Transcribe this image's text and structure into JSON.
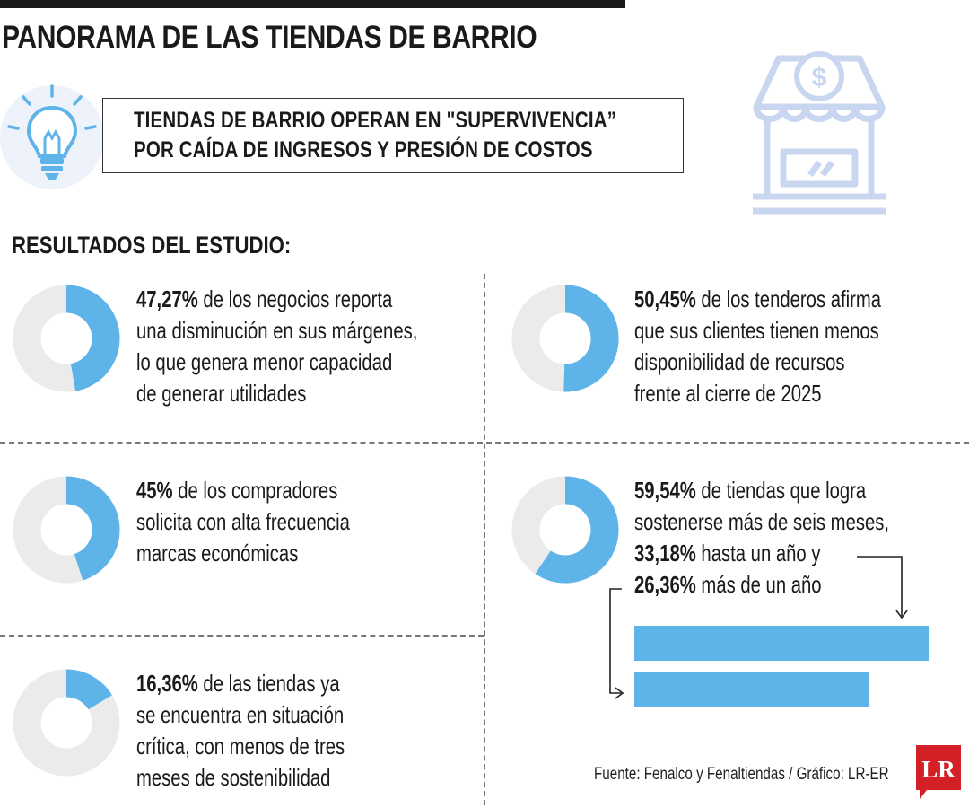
{
  "title": "PANORAMA DE LAS TIENDAS DE BARRIO",
  "headline": {
    "line1": "TIENDAS DE BARRIO OPERAN EN \"SUPERVIVENCIA”",
    "line2": "POR CAÍDA DE INGRESOS Y PRESIÓN DE COSTOS"
  },
  "section_title": "RESULTADOS DEL ESTUDIO:",
  "icons": [
    "lightbulb-icon",
    "store-icon"
  ],
  "colors": {
    "accent": "#5eb4e8",
    "track": "#ebebeb",
    "text": "#1a1a1a",
    "logo": "#d32027",
    "icon_light": "#c9d6ef"
  },
  "stats": [
    {
      "value": "47,27%",
      "lines": [
        " de los negocios reporta",
        "una disminución en sus márgenes,",
        "lo que genera menor capacidad",
        "de generar utilidades"
      ]
    },
    {
      "value": "50,45%",
      "lines": [
        " de los tenderos afirma",
        "que sus clientes tienen menos",
        "disponibilidad de recursos",
        "frente al cierre de 2025"
      ]
    },
    {
      "value": "45%",
      "lines": [
        " de los compradores",
        "solicita con alta frecuencia",
        "marcas económicas"
      ]
    },
    {
      "value": "59,54%",
      "lines": [
        " de tiendas que logra",
        "sostenerse más de seis meses,"
      ],
      "value2": "33,18%",
      "text2": " hasta un año y",
      "value3": "26,36%",
      "text3": " más de un año"
    },
    {
      "value": "16,36%",
      "lines": [
        " de las tiendas ya",
        "se encuentra en situación",
        "crítica, con menos de tres",
        "meses de sostenibilidad"
      ]
    }
  ],
  "source": "Fuente: Fenalco y Fenaltiendas / Gráfico: LR-ER",
  "logo": "LR",
  "chart_data": [
    {
      "type": "pie",
      "title": "",
      "slices": [
        {
          "label": "47,27%",
          "value": 47.27
        },
        {
          "label": "",
          "value": 52.73
        }
      ]
    },
    {
      "type": "pie",
      "title": "",
      "slices": [
        {
          "label": "50,45%",
          "value": 50.45
        },
        {
          "label": "",
          "value": 49.55
        }
      ]
    },
    {
      "type": "pie",
      "title": "",
      "slices": [
        {
          "label": "45%",
          "value": 45
        },
        {
          "label": "",
          "value": 55
        }
      ]
    },
    {
      "type": "pie",
      "title": "",
      "slices": [
        {
          "label": "59,54%",
          "value": 59.54
        },
        {
          "label": "",
          "value": 40.46
        }
      ]
    },
    {
      "type": "pie",
      "title": "",
      "slices": [
        {
          "label": "16,36%",
          "value": 16.36
        },
        {
          "label": "",
          "value": 83.64
        }
      ]
    },
    {
      "type": "bar",
      "title": "",
      "categories": [
        "33,18%",
        "26,36%"
      ],
      "values": [
        33.18,
        26.36
      ],
      "xlim": [
        0,
        33.18
      ]
    }
  ]
}
